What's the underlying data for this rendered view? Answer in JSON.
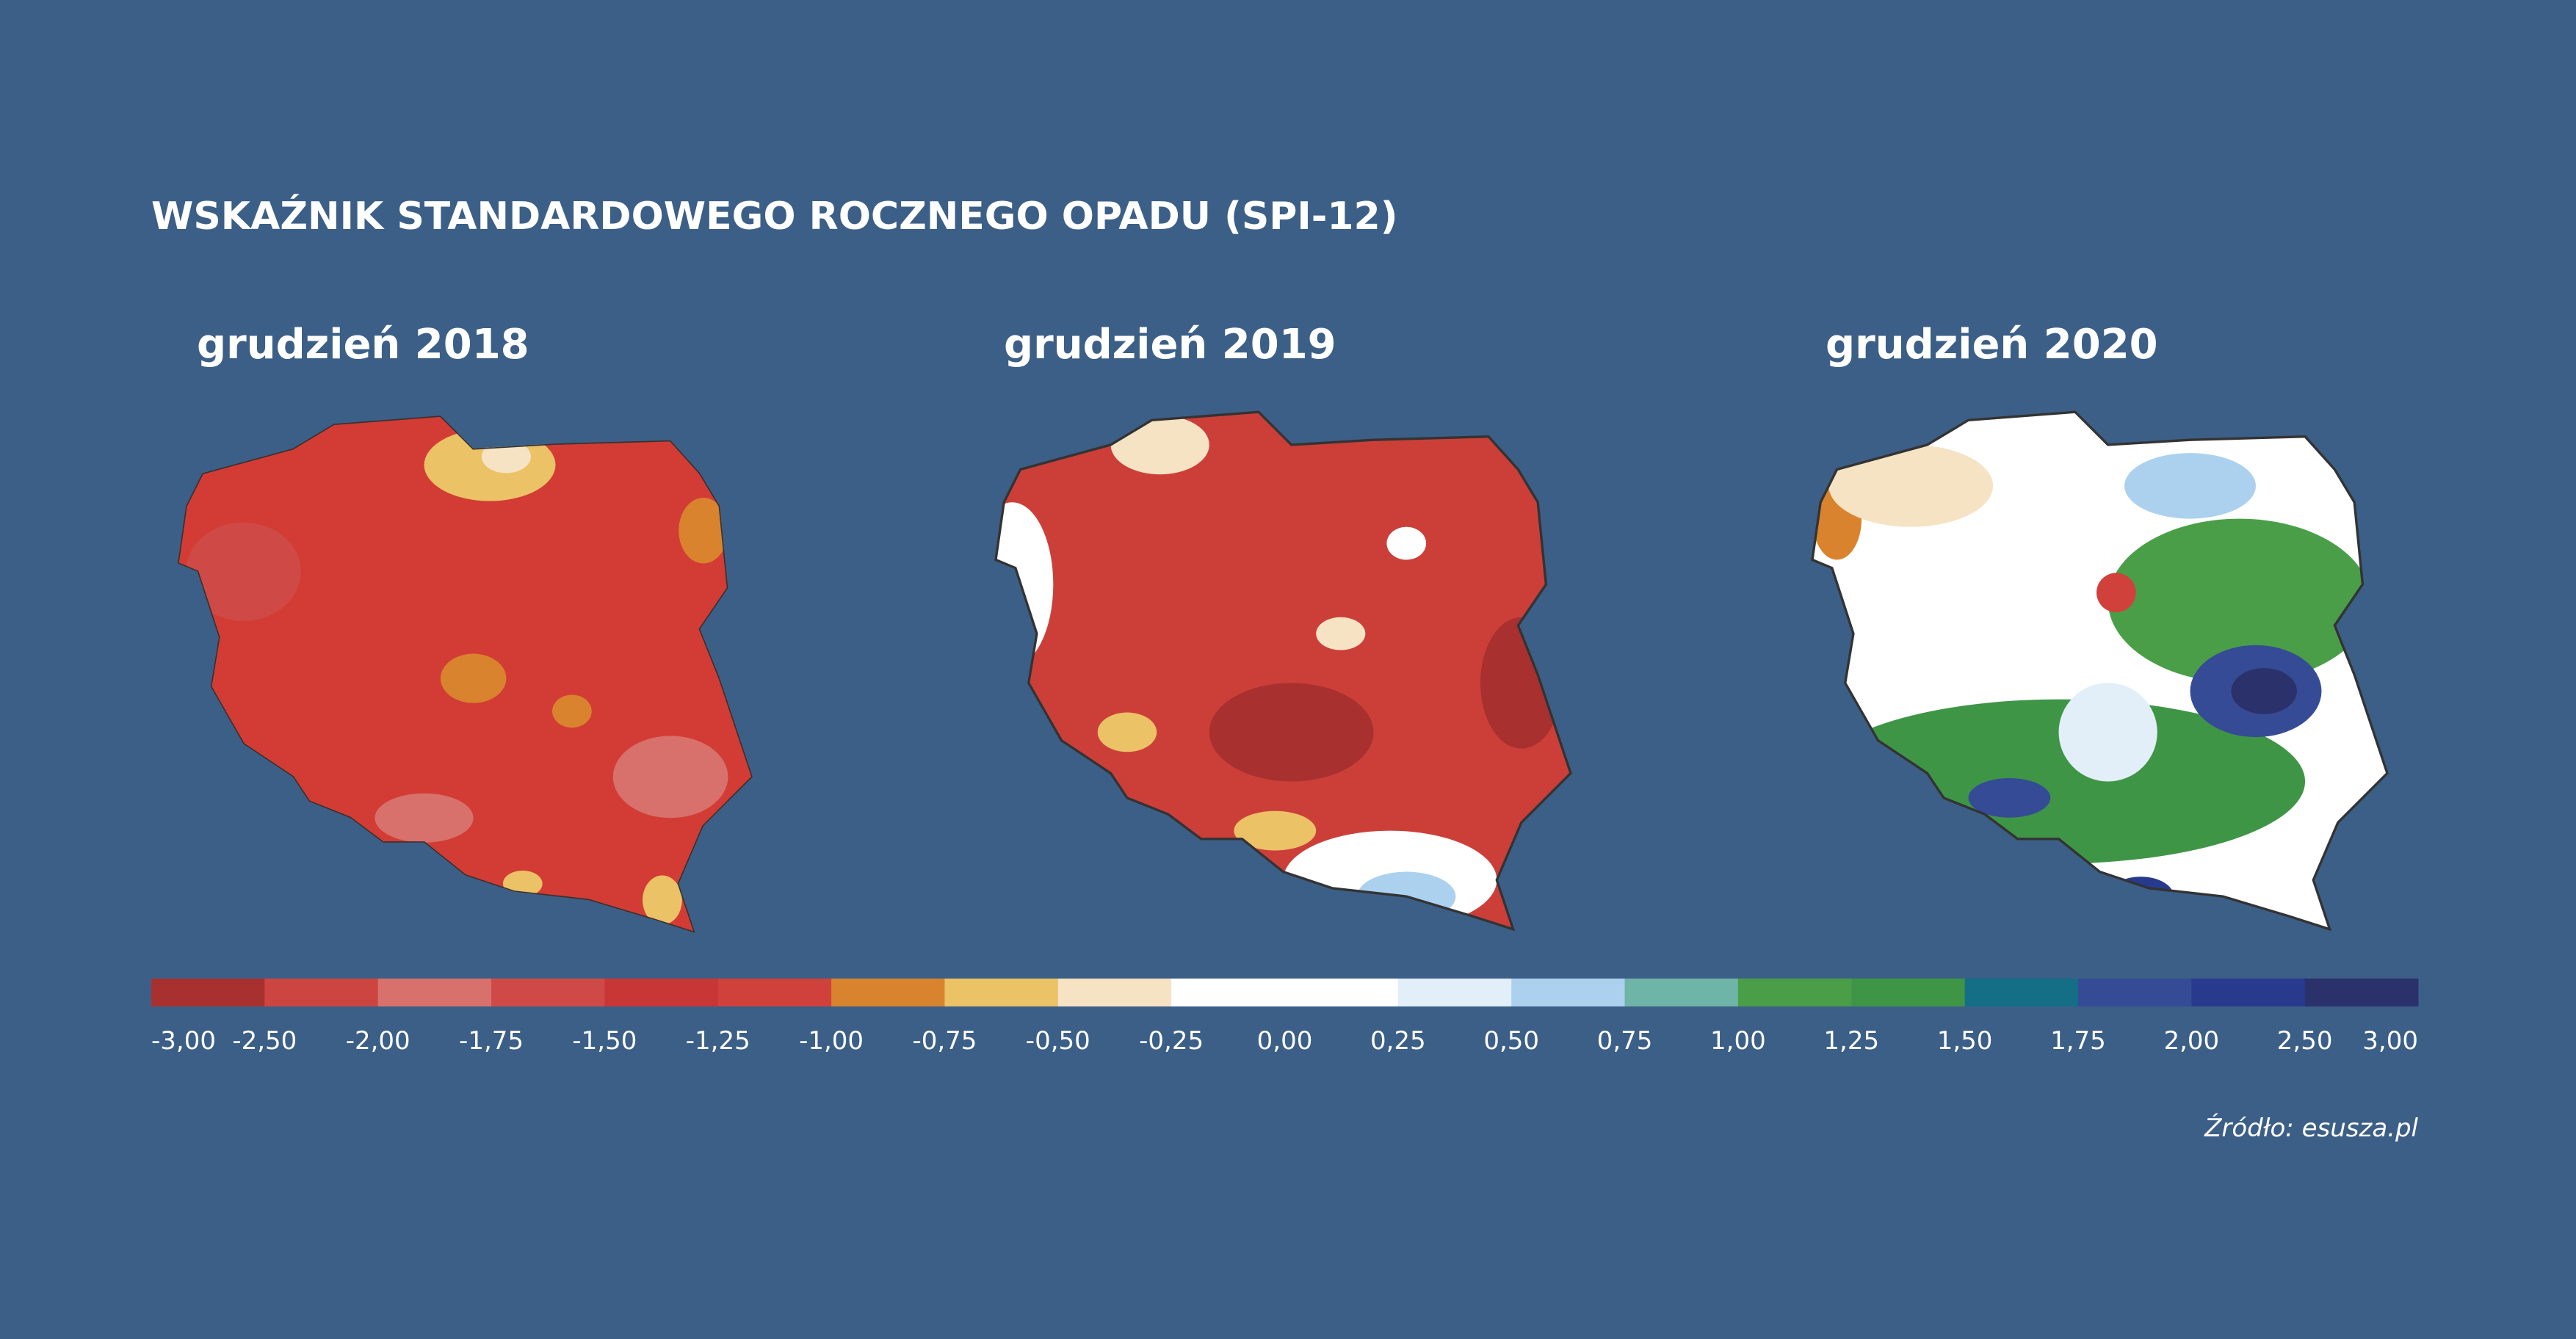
{
  "title": "WSKAŹNIK STANDARDOWEGO ROCZNEGO OPADU (SPI-12)",
  "maps": [
    {
      "label": "grudzień 2018"
    },
    {
      "label": "grudzień 2019"
    },
    {
      "label": "grudzień 2020"
    }
  ],
  "legend": {
    "colors": [
      "#a8302f",
      "#cc4541",
      "#d8716b",
      "#cf4a46",
      "#c93636",
      "#d0413b",
      "#d9832f",
      "#ebc266",
      "#f6e3c4",
      "#ffffff",
      "#ffffff",
      "#e2eef8",
      "#abd1ef",
      "#6eb4a7",
      "#4a9e47",
      "#3f9546",
      "#146f86",
      "#354b96",
      "#283a8e",
      "#2b316b"
    ],
    "labels": [
      "-3,00",
      "-2,50",
      "-2,00",
      "-1,75",
      "-1,50",
      "-1,25",
      "-1,00",
      "-0,75",
      "-0,50",
      "-0,25",
      "0,00",
      "0,25",
      "0,50",
      "0,75",
      "1,00",
      "1,25",
      "1,50",
      "1,75",
      "2,00",
      "2,50",
      "3,00"
    ]
  },
  "source": "Źródło: esusza.pl"
}
